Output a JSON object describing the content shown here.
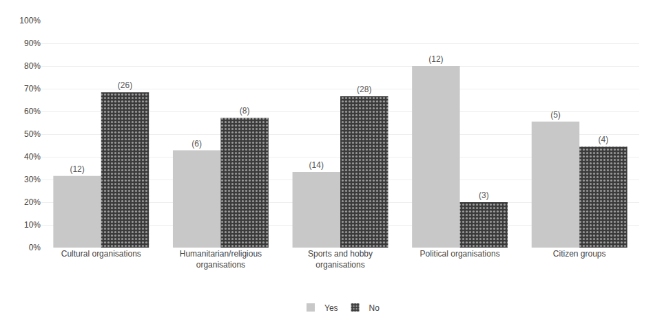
{
  "chart_data": {
    "type": "bar",
    "categories": [
      "Cultural organisations",
      "Humanitarian/religious\norganisations",
      "Sports and hobby\norganisations",
      "Political organisations",
      "Citizen groups"
    ],
    "series": [
      {
        "name": "Yes",
        "color": "#c8c8c8",
        "values": [
          31.58,
          42.86,
          33.33,
          80.0,
          55.56
        ],
        "count_labels": [
          "(12)",
          "(6)",
          "(14)",
          "(12)",
          "(5)"
        ]
      },
      {
        "name": "No",
        "color": "#3a3a3a",
        "values": [
          68.42,
          57.14,
          66.67,
          20.0,
          44.44
        ],
        "count_labels": [
          "(26)",
          "(8)",
          "(28)",
          "(3)",
          "(4)"
        ]
      }
    ],
    "ylim": [
      0,
      100
    ],
    "yticks": [
      {
        "value": 0,
        "label": "0%"
      },
      {
        "value": 10,
        "label": "10%"
      },
      {
        "value": 20,
        "label": "20%"
      },
      {
        "value": 30,
        "label": "30%"
      },
      {
        "value": 40,
        "label": "40%"
      },
      {
        "value": 50,
        "label": "50%"
      },
      {
        "value": 60,
        "label": "60%"
      },
      {
        "value": 70,
        "label": "70%"
      },
      {
        "value": 80,
        "label": "80%"
      },
      {
        "value": 90,
        "label": "90%"
      },
      {
        "value": 100,
        "label": "100%"
      }
    ],
    "grid": true,
    "legend": "bottom"
  }
}
